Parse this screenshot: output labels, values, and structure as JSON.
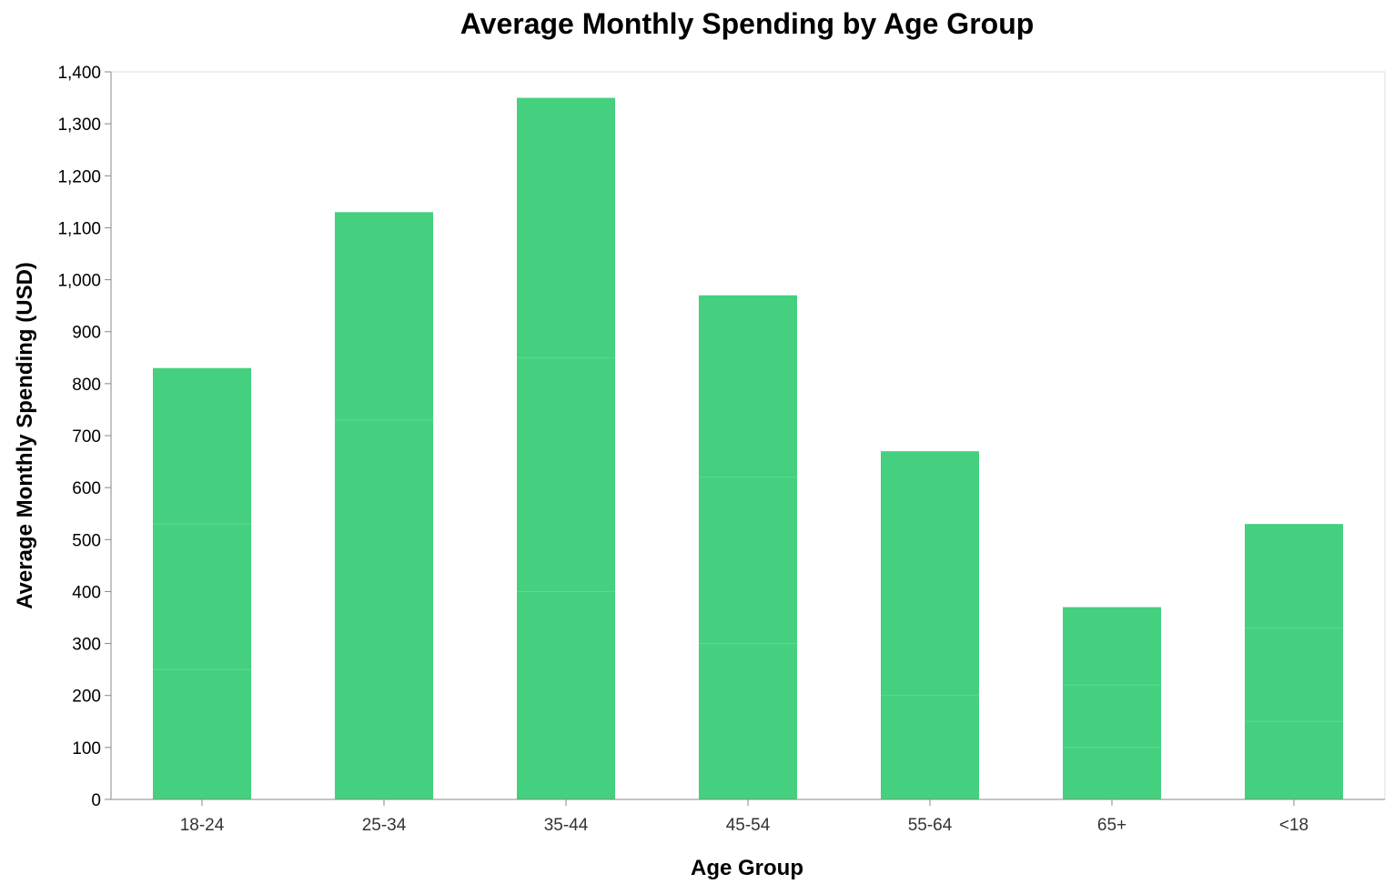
{
  "colors": {
    "bar": "#44d07f",
    "segment_divider": "#5fd98f",
    "axis": "#888888",
    "frame": "#dddddd"
  },
  "chart_data": {
    "type": "bar",
    "stacked": true,
    "title": "Average Monthly Spending by Age Group",
    "xlabel": "Age Group",
    "ylabel": "Average Monthly Spending (USD)",
    "ylim": [
      0,
      1400
    ],
    "y_ticks": [
      0,
      100,
      200,
      300,
      400,
      500,
      600,
      700,
      800,
      900,
      1000,
      1100,
      1200,
      1300,
      1400
    ],
    "y_tick_labels": [
      "0",
      "100",
      "200",
      "300",
      "400",
      "500",
      "600",
      "700",
      "800",
      "900",
      "1,000",
      "1,100",
      "1,200",
      "1,300",
      "1,400"
    ],
    "categories": [
      "18-24",
      "25-34",
      "35-44",
      "45-54",
      "55-64",
      "65+",
      "<18"
    ],
    "segments": [
      [
        250,
        280,
        300
      ],
      [
        730,
        400
      ],
      [
        400,
        450,
        500
      ],
      [
        300,
        320,
        350
      ],
      [
        200,
        470
      ],
      [
        100,
        120,
        150
      ],
      [
        150,
        180,
        200
      ]
    ],
    "totals": [
      830,
      1130,
      1350,
      970,
      670,
      370,
      530
    ],
    "grid": false
  }
}
